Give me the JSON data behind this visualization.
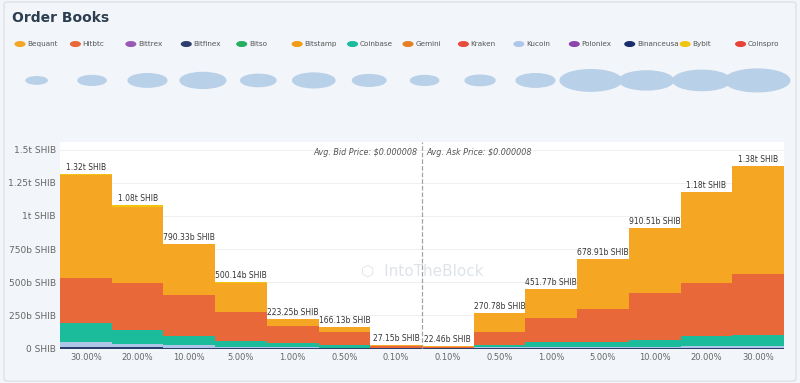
{
  "title": "Order Books",
  "background_color": "#f2f5f9",
  "chart_bg": "#ffffff",
  "avg_bid_label": "Avg. Bid Price: $0.000008",
  "avg_ask_label": "Avg. Ask Price: $0.000008",
  "legend_entries": [
    {
      "name": "Bequant",
      "color": "#f5a623"
    },
    {
      "name": "Hitbtc",
      "color": "#e8683a"
    },
    {
      "name": "Bittrex",
      "color": "#9b59b6"
    },
    {
      "name": "Bitfinex",
      "color": "#2c3e6b"
    },
    {
      "name": "Bitso",
      "color": "#27ae60"
    },
    {
      "name": "Bitstamp",
      "color": "#f39c12"
    },
    {
      "name": "Coinbase",
      "color": "#1abc9c"
    },
    {
      "name": "Gemini",
      "color": "#e67e22"
    },
    {
      "name": "Kraken",
      "color": "#e74c3c"
    },
    {
      "name": "Kucoin",
      "color": "#aec6e8"
    },
    {
      "name": "Poloniex",
      "color": "#8e44ad"
    },
    {
      "name": "Binanceusa",
      "color": "#1a2d6b"
    },
    {
      "name": "Bybit",
      "color": "#f1c40f"
    },
    {
      "name": "Coinspro",
      "color": "#e8433a"
    }
  ],
  "bid_labels": [
    "30.00%",
    "20.00%",
    "10.00%",
    "5.00%",
    "1.00%",
    "0.50%",
    "0.10%"
  ],
  "ask_labels": [
    "0.10%",
    "0.50%",
    "1.00%",
    "5.00%",
    "10.00%",
    "20.00%",
    "30.00%"
  ],
  "bid_totals_text": [
    "1.32t SHIB",
    "1.08t SHIB",
    "790.33b SHIB",
    "500.14b SHIB",
    "223.25b SHIB",
    "166.13b SHIB",
    "27.15b SHIB"
  ],
  "ask_totals_text": [
    "22.46b SHIB",
    "270.78b SHIB",
    "451.77b SHIB",
    "678.91b SHIB",
    "910.51b SHIB",
    "1.18t SHIB",
    "1.38t SHIB"
  ],
  "bid_totals": [
    1320,
    1080,
    790.33,
    500.14,
    223.25,
    166.13,
    27.15
  ],
  "ask_totals": [
    22.46,
    270.78,
    451.77,
    678.91,
    910.51,
    1180,
    1380
  ],
  "bid_layers": {
    "orange": [
      780,
      580,
      385,
      218,
      48,
      44,
      7
    ],
    "red": [
      340,
      355,
      305,
      215,
      128,
      96,
      12
    ],
    "teal": [
      140,
      100,
      72,
      45,
      32,
      18,
      5
    ],
    "lightblue": [
      42,
      28,
      20,
      12,
      9,
      5,
      2
    ],
    "darkblue": [
      10,
      8,
      5,
      3,
      3,
      2,
      0.5
    ],
    "yellow": [
      8,
      9,
      3,
      7,
      3,
      1,
      0.65
    ]
  },
  "ask_layers": {
    "orange": [
      7,
      148,
      218,
      378,
      488,
      685,
      815
    ],
    "red": [
      8,
      92,
      182,
      248,
      358,
      398,
      462
    ],
    "teal": [
      4,
      22,
      42,
      42,
      52,
      78,
      82
    ],
    "lightblue": [
      2,
      6,
      7,
      6,
      8,
      14,
      16
    ],
    "darkblue": [
      0.5,
      2,
      2,
      2,
      2,
      4,
      4
    ],
    "yellow": [
      0.96,
      0.78,
      0.77,
      0.91,
      2.51,
      1,
      1
    ]
  },
  "ytick_labels": [
    "0 SHIB",
    "250b SHIB",
    "500b SHIB",
    "750b SHIB",
    "1t SHIB",
    "1.25t SHIB",
    "1.5t SHIB"
  ],
  "ytick_values": [
    0,
    250,
    500,
    750,
    1000,
    1250,
    1500
  ],
  "ymax": 1560,
  "bubble_color": "#b8d0e8",
  "bubble_sizes_radius": [
    0.012,
    0.016,
    0.022,
    0.026,
    0.02,
    0.024,
    0.019,
    0.016,
    0.017,
    0.022,
    0.035,
    0.031,
    0.033,
    0.037
  ]
}
